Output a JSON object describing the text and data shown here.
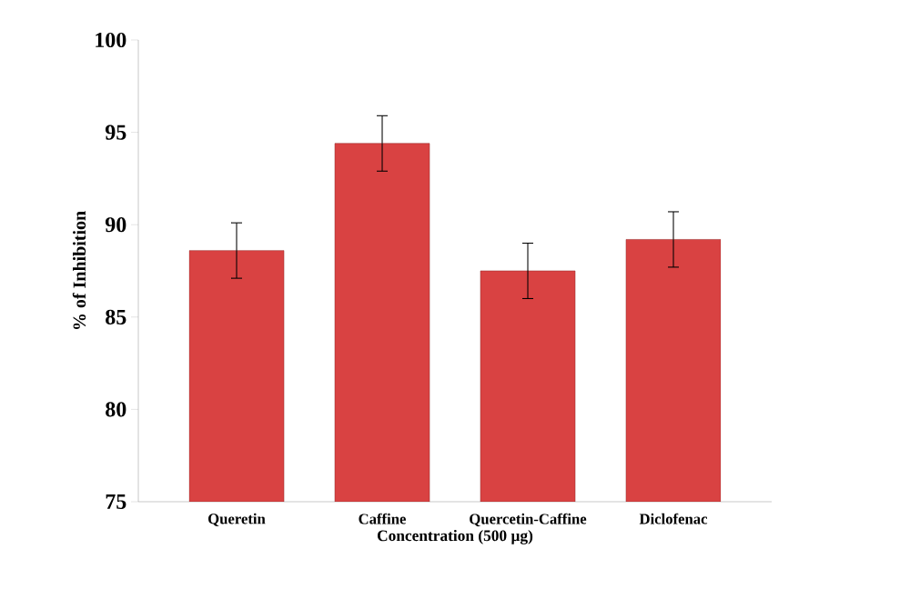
{
  "chart_data": {
    "type": "bar",
    "xlabel": "Concentration (500 µg)",
    "ylabel": "% of Inhibition",
    "categories": [
      "Queretin",
      "Caffine",
      "Quercetin-Caffine",
      "Diclofenac"
    ],
    "values": [
      88.6,
      94.4,
      87.5,
      89.2
    ],
    "errors": [
      1.5,
      1.5,
      1.5,
      1.5
    ],
    "color": "#d94242",
    "ylim": [
      75,
      100
    ],
    "yticks": [
      75,
      80,
      85,
      90,
      95,
      100
    ],
    "grid": false
  }
}
